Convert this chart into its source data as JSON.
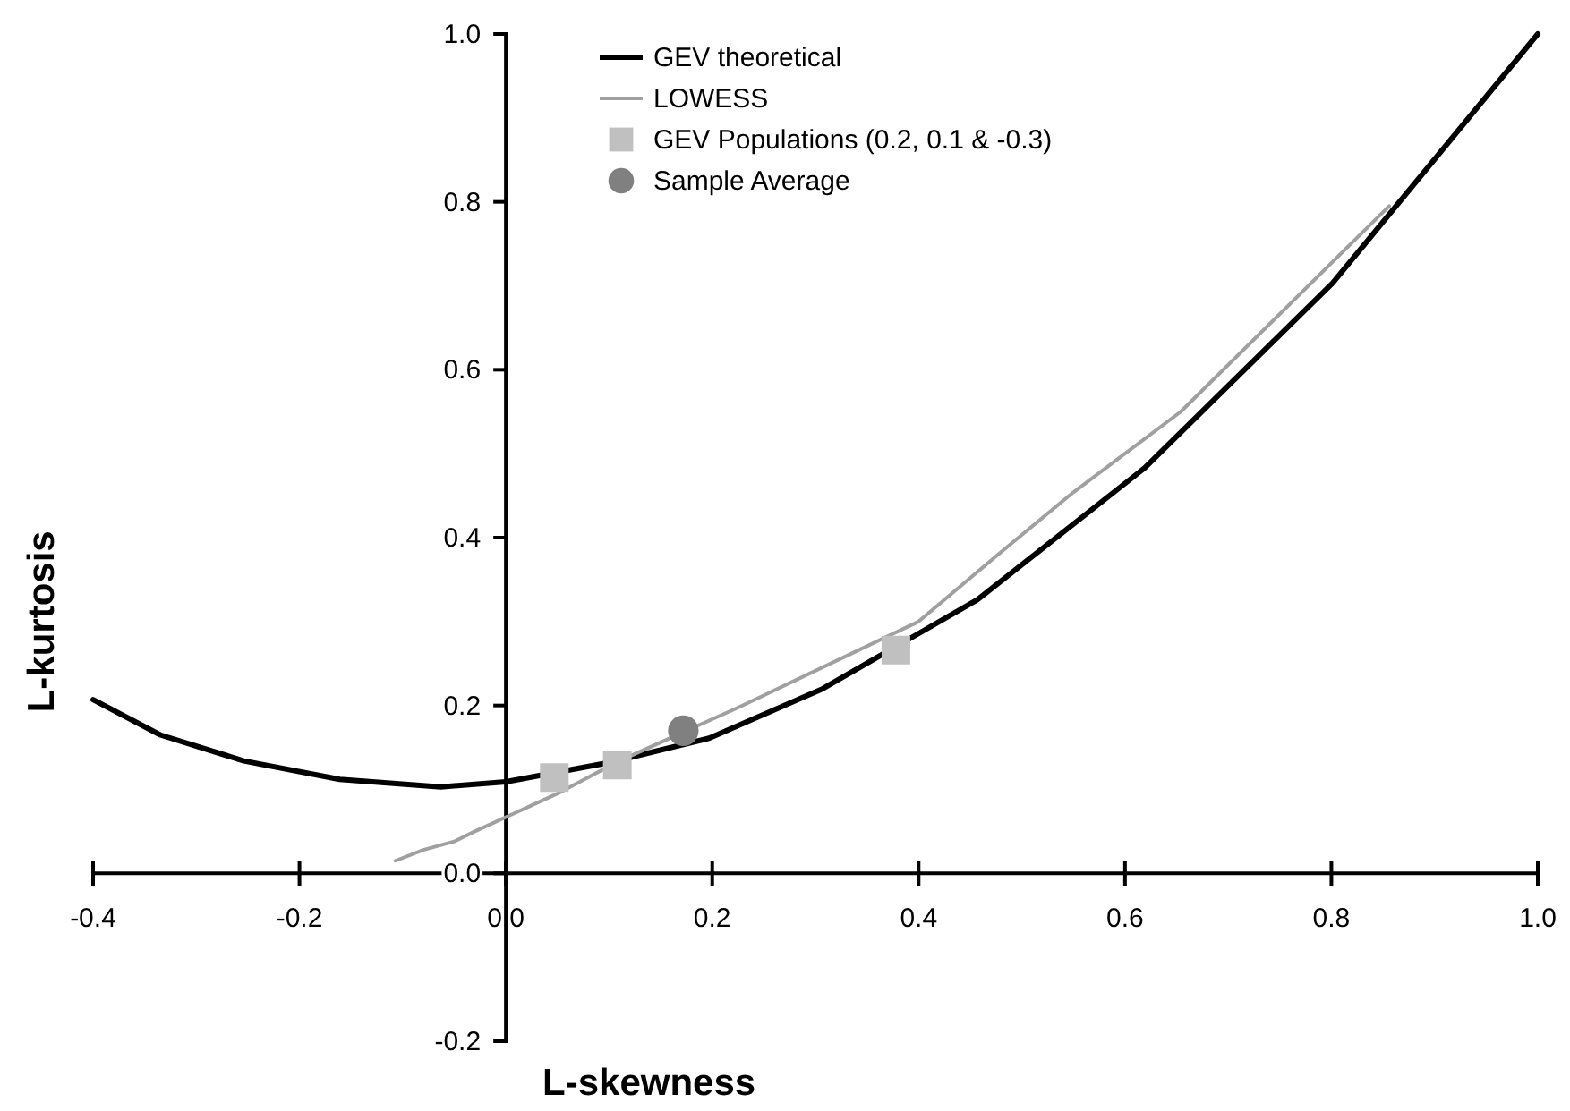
{
  "chart_data": {
    "type": "line",
    "xlabel": "L-skewness",
    "ylabel": "L-kurtosis",
    "xlim": [
      -0.4,
      1.0
    ],
    "ylim": [
      -0.2,
      1.0
    ],
    "xticks": [
      {
        "value": -0.4,
        "label": "-0.4"
      },
      {
        "value": -0.2,
        "label": "-0.2"
      },
      {
        "value": 0,
        "label": "0.0"
      },
      {
        "value": 0.2,
        "label": "0.2"
      },
      {
        "value": 0.4,
        "label": "0.4"
      },
      {
        "value": 0.6,
        "label": "0.6"
      },
      {
        "value": 0.8,
        "label": "0.8"
      },
      {
        "value": 1.0,
        "label": "1.0"
      }
    ],
    "yticks": [
      {
        "value": -0.2,
        "label": "-0.2"
      },
      {
        "value": 0,
        "label": "0.0"
      },
      {
        "value": 0.2,
        "label": "0.2"
      },
      {
        "value": 0.4,
        "label": "0.4"
      },
      {
        "value": 0.6,
        "label": "0.6"
      },
      {
        "value": 0.8,
        "label": "0.8"
      },
      {
        "value": 1.0,
        "label": "1.0"
      }
    ],
    "grid": false,
    "legend": "top",
    "series": [
      {
        "name": "GEV theoretical",
        "color": "#000000",
        "x": [
          -0.4,
          -0.335,
          -0.254,
          -0.161,
          -0.063,
          0,
          0.1,
          0.197,
          0.307,
          0.457,
          0.619,
          0.801,
          1.0
        ],
        "values": [
          0.207,
          0.165,
          0.134,
          0.112,
          0.103,
          0.109,
          0.132,
          0.161,
          0.22,
          0.326,
          0.483,
          0.703,
          1.0
        ]
      },
      {
        "name": "LOWESS",
        "color": "#a0a0a0",
        "x": [
          -0.107,
          -0.08,
          -0.05,
          -0.03,
          0,
          0.05,
          0.11,
          0.226,
          0.4,
          0.48,
          0.55,
          0.654,
          0.856
        ],
        "values": [
          0.015,
          0.028,
          0.038,
          0.05,
          0.067,
          0.095,
          0.134,
          0.198,
          0.3,
          0.383,
          0.454,
          0.55,
          0.795
        ]
      },
      {
        "name": "GEV Populations (0.2, 0.1 & -0.3)",
        "type": "scatter",
        "marker": "square",
        "color": "#c0c0c0",
        "x": [
          0.047,
          0.108,
          0.378
        ],
        "values": [
          0.114,
          0.129,
          0.266
        ]
      },
      {
        "name": "Sample Average",
        "type": "scatter",
        "marker": "circle",
        "color": "#808080",
        "x": [
          0.172
        ],
        "values": [
          0.17
        ]
      }
    ]
  }
}
